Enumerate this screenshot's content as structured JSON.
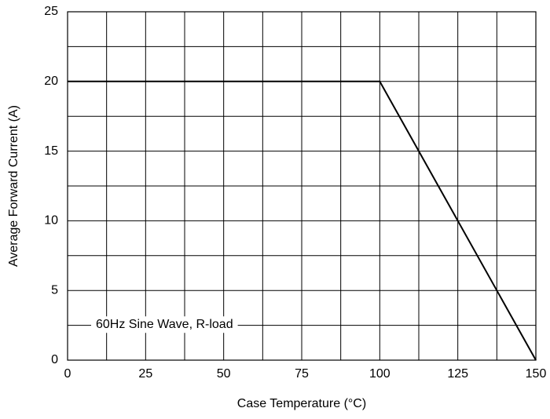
{
  "chart_data": {
    "type": "line",
    "title": "",
    "xlabel": "Case Temperature (°C)",
    "ylabel": "Average Forward Current (A)",
    "xlim": [
      0,
      150
    ],
    "ylim": [
      0,
      25
    ],
    "x_major_ticks": [
      0,
      25,
      50,
      75,
      100,
      125,
      150
    ],
    "x_tick_labels": [
      "0",
      "25",
      "50",
      "75",
      "100",
      "125",
      "150"
    ],
    "x_grid_step": 12.5,
    "y_major_ticks": [
      0,
      5,
      10,
      15,
      20,
      25
    ],
    "y_tick_labels": [
      "0",
      "5",
      "10",
      "15",
      "20",
      "25"
    ],
    "y_grid_step": 2.5,
    "grid": true,
    "legend": "none",
    "annotation": "60Hz Sine Wave, R-load",
    "series": [
      {
        "x": [
          0,
          100,
          150
        ],
        "y": [
          20,
          20,
          0
        ],
        "color": "#000000"
      }
    ]
  }
}
